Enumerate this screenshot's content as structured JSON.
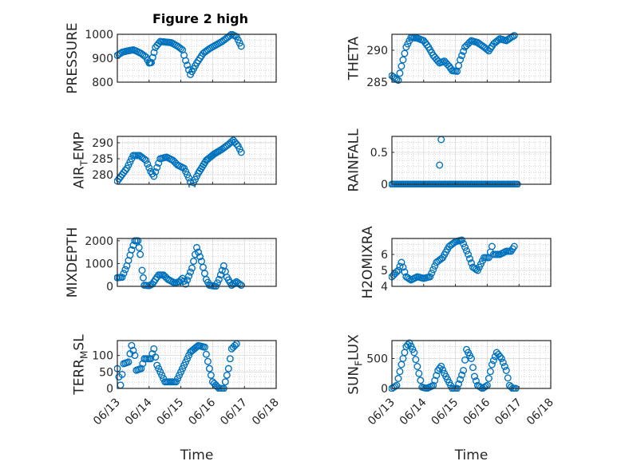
{
  "figure": {
    "title": "Figure 2 high"
  },
  "chart_data": [
    {
      "type": "scatter",
      "ylabel": "PRESSURE",
      "ylim": [
        800,
        1000
      ],
      "yticks": [
        {
          "v": 800,
          "label": "800"
        },
        {
          "v": 900,
          "label": "900"
        },
        {
          "v": 1000,
          "label": "1000"
        }
      ],
      "xlim": [
        0,
        5
      ],
      "xticks": [
        {
          "v": 0,
          "label": ""
        },
        {
          "v": 1,
          "label": ""
        },
        {
          "v": 2,
          "label": ""
        },
        {
          "v": 3,
          "label": ""
        },
        {
          "v": 4,
          "label": ""
        },
        {
          "v": 5,
          "label": ""
        }
      ],
      "grid": true,
      "curve": [
        [
          0,
          912
        ],
        [
          0.15,
          925
        ],
        [
          0.3,
          930
        ],
        [
          0.5,
          935
        ],
        [
          0.6,
          930
        ],
        [
          0.75,
          920
        ],
        [
          0.9,
          905
        ],
        [
          1.0,
          880
        ],
        [
          1.07,
          882
        ],
        [
          1.2,
          945
        ],
        [
          1.35,
          970
        ],
        [
          1.5,
          968
        ],
        [
          1.7,
          965
        ],
        [
          1.9,
          950
        ],
        [
          2.05,
          935
        ],
        [
          2.15,
          890
        ],
        [
          2.3,
          832
        ],
        [
          2.5,
          880
        ],
        [
          2.7,
          920
        ],
        [
          2.9,
          940
        ],
        [
          3.1,
          955
        ],
        [
          3.3,
          970
        ],
        [
          3.45,
          985
        ],
        [
          3.6,
          1000
        ],
        [
          3.75,
          990
        ],
        [
          3.9,
          950
        ]
      ]
    },
    {
      "type": "scatter",
      "ylabel": "THETA",
      "ylim": [
        285,
        292.5
      ],
      "yticks": [
        {
          "v": 285,
          "label": "285"
        },
        {
          "v": 290,
          "label": "290"
        }
      ],
      "xlim": [
        0,
        5
      ],
      "xticks": [
        {
          "v": 0,
          "label": ""
        },
        {
          "v": 1,
          "label": ""
        },
        {
          "v": 2,
          "label": ""
        },
        {
          "v": 3,
          "label": ""
        },
        {
          "v": 4,
          "label": ""
        },
        {
          "v": 5,
          "label": ""
        }
      ],
      "grid": true,
      "curve": [
        [
          0,
          286.0
        ],
        [
          0.1,
          285.6
        ],
        [
          0.2,
          285.3
        ],
        [
          0.3,
          287.5
        ],
        [
          0.45,
          290.5
        ],
        [
          0.6,
          292.0
        ],
        [
          0.8,
          291.9
        ],
        [
          1.0,
          291.5
        ],
        [
          1.15,
          290.5
        ],
        [
          1.3,
          289.2
        ],
        [
          1.5,
          288.0
        ],
        [
          1.65,
          288.3
        ],
        [
          1.8,
          287.5
        ],
        [
          1.9,
          286.8
        ],
        [
          2.05,
          286.7
        ],
        [
          2.15,
          288.5
        ],
        [
          2.3,
          290.5
        ],
        [
          2.5,
          291.5
        ],
        [
          2.7,
          291.2
        ],
        [
          2.9,
          290.5
        ],
        [
          3.05,
          289.9
        ],
        [
          3.2,
          291.0
        ],
        [
          3.4,
          291.8
        ],
        [
          3.6,
          291.5
        ],
        [
          3.75,
          292.0
        ],
        [
          3.85,
          292.3
        ]
      ]
    },
    {
      "type": "scatter",
      "ylabel": "AIR_TEMP",
      "ylabel_parts": {
        "main": "AIR",
        "sub": "T",
        "rest": "EMP"
      },
      "ylim": [
        277,
        292
      ],
      "yticks": [
        {
          "v": 280,
          "label": "280"
        },
        {
          "v": 285,
          "label": "285"
        },
        {
          "v": 290,
          "label": "290"
        }
      ],
      "xlim": [
        0,
        5
      ],
      "xticks": [
        {
          "v": 0,
          "label": ""
        },
        {
          "v": 1,
          "label": ""
        },
        {
          "v": 2,
          "label": ""
        },
        {
          "v": 3,
          "label": ""
        },
        {
          "v": 4,
          "label": ""
        },
        {
          "v": 5,
          "label": ""
        }
      ],
      "grid": true,
      "curve": [
        [
          0,
          278
        ],
        [
          0.15,
          280
        ],
        [
          0.3,
          282
        ],
        [
          0.5,
          286
        ],
        [
          0.7,
          286
        ],
        [
          0.9,
          284.5
        ],
        [
          1.05,
          281
        ],
        [
          1.15,
          279.5
        ],
        [
          1.35,
          285
        ],
        [
          1.55,
          285.5
        ],
        [
          1.75,
          284.5
        ],
        [
          1.9,
          283
        ],
        [
          2.1,
          282
        ],
        [
          2.25,
          279
        ],
        [
          2.35,
          276.5
        ],
        [
          2.55,
          280.5
        ],
        [
          2.8,
          284.5
        ],
        [
          3.05,
          286.5
        ],
        [
          3.3,
          288
        ],
        [
          3.5,
          289.5
        ],
        [
          3.65,
          290.8
        ],
        [
          3.8,
          289
        ],
        [
          3.9,
          287
        ]
      ]
    },
    {
      "type": "scatter",
      "ylabel": "RAINFALL",
      "ylim": [
        0,
        0.75
      ],
      "yticks": [
        {
          "v": 0,
          "label": "0"
        },
        {
          "v": 0.5,
          "label": "0.5"
        }
      ],
      "xlim": [
        0,
        5
      ],
      "xticks": [
        {
          "v": 0,
          "label": ""
        },
        {
          "v": 1,
          "label": ""
        },
        {
          "v": 2,
          "label": ""
        },
        {
          "v": 3,
          "label": ""
        },
        {
          "v": 4,
          "label": ""
        },
        {
          "v": 5,
          "label": ""
        }
      ],
      "grid": true,
      "curve": [
        [
          0,
          0
        ],
        [
          3.95,
          0
        ]
      ],
      "extra_points": [
        [
          1.5,
          0.3
        ],
        [
          1.55,
          0.7
        ]
      ]
    },
    {
      "type": "scatter",
      "ylabel": "MIXDEPTH",
      "ylim": [
        0,
        2100
      ],
      "yticks": [
        {
          "v": 0,
          "label": "0"
        },
        {
          "v": 1000,
          "label": "1000"
        },
        {
          "v": 2000,
          "label": "2000"
        }
      ],
      "xlim": [
        0,
        5
      ],
      "xticks": [
        {
          "v": 0,
          "label": ""
        },
        {
          "v": 1,
          "label": ""
        },
        {
          "v": 2,
          "label": ""
        },
        {
          "v": 3,
          "label": ""
        },
        {
          "v": 4,
          "label": ""
        },
        {
          "v": 5,
          "label": ""
        }
      ],
      "grid": true,
      "curve": [
        [
          0,
          380
        ],
        [
          0.15,
          400
        ],
        [
          0.3,
          900
        ],
        [
          0.45,
          1600
        ],
        [
          0.55,
          2000
        ],
        [
          0.65,
          2000
        ],
        [
          0.72,
          1400
        ],
        [
          0.78,
          700
        ],
        [
          0.85,
          50
        ],
        [
          1.0,
          30
        ],
        [
          1.1,
          100
        ],
        [
          1.3,
          500
        ],
        [
          1.45,
          500
        ],
        [
          1.6,
          300
        ],
        [
          1.8,
          150
        ],
        [
          1.95,
          200
        ],
        [
          2.05,
          350
        ],
        [
          2.15,
          100
        ],
        [
          2.35,
          800
        ],
        [
          2.5,
          1700
        ],
        [
          2.65,
          1100
        ],
        [
          2.8,
          300
        ],
        [
          2.9,
          50
        ],
        [
          3.1,
          0
        ],
        [
          3.2,
          300
        ],
        [
          3.35,
          900
        ],
        [
          3.45,
          400
        ],
        [
          3.6,
          50
        ],
        [
          3.75,
          200
        ],
        [
          3.85,
          100
        ],
        [
          3.9,
          50
        ]
      ]
    },
    {
      "type": "scatter",
      "ylabel": "H2OMIXRA",
      "ylim": [
        4,
        7
      ],
      "yticks": [
        {
          "v": 4,
          "label": "4"
        },
        {
          "v": 5,
          "label": "5"
        },
        {
          "v": 6,
          "label": "6"
        }
      ],
      "xlim": [
        0,
        5
      ],
      "xticks": [
        {
          "v": 0,
          "label": ""
        },
        {
          "v": 1,
          "label": ""
        },
        {
          "v": 2,
          "label": ""
        },
        {
          "v": 3,
          "label": ""
        },
        {
          "v": 4,
          "label": ""
        },
        {
          "v": 5,
          "label": ""
        }
      ],
      "grid": true,
      "curve": [
        [
          0,
          4.6
        ],
        [
          0.2,
          5.0
        ],
        [
          0.3,
          5.5
        ],
        [
          0.45,
          4.6
        ],
        [
          0.6,
          4.4
        ],
        [
          0.8,
          4.6
        ],
        [
          1.0,
          4.5
        ],
        [
          1.2,
          4.6
        ],
        [
          1.4,
          5.5
        ],
        [
          1.6,
          5.8
        ],
        [
          1.8,
          6.5
        ],
        [
          2.0,
          6.8
        ],
        [
          2.2,
          6.9
        ],
        [
          2.4,
          6.0
        ],
        [
          2.55,
          5.2
        ],
        [
          2.7,
          5.0
        ],
        [
          2.9,
          5.8
        ],
        [
          3.05,
          5.8
        ],
        [
          3.15,
          6.5
        ],
        [
          3.2,
          6.0
        ],
        [
          3.4,
          6.0
        ],
        [
          3.6,
          6.2
        ],
        [
          3.75,
          6.2
        ],
        [
          3.85,
          6.5
        ]
      ]
    },
    {
      "type": "scatter",
      "ylabel": "TERR_MSL",
      "ylabel_parts": {
        "main": "TERR",
        "sub": "M",
        "rest": "SL"
      },
      "ylim": [
        0,
        145
      ],
      "yticks": [
        {
          "v": 0,
          "label": "0"
        },
        {
          "v": 50,
          "label": "50"
        },
        {
          "v": 100,
          "label": "100"
        }
      ],
      "xlim": [
        0,
        5
      ],
      "xticks": [
        {
          "v": 0,
          "label": "06/13"
        },
        {
          "v": 1,
          "label": "06/14"
        },
        {
          "v": 2,
          "label": "06/15"
        },
        {
          "v": 3,
          "label": "06/16"
        },
        {
          "v": 4,
          "label": "06/17"
        },
        {
          "v": 5,
          "label": "06/18"
        }
      ],
      "xlabel": "Time",
      "grid": true,
      "curve": [
        [
          0,
          60
        ],
        [
          0.1,
          10
        ],
        [
          0.2,
          75
        ],
        [
          0.35,
          80
        ],
        [
          0.45,
          130
        ],
        [
          0.55,
          100
        ],
        [
          0.6,
          55
        ],
        [
          0.75,
          60
        ],
        [
          0.85,
          90
        ],
        [
          1.05,
          90
        ],
        [
          1.15,
          120
        ],
        [
          1.25,
          70
        ],
        [
          1.4,
          40
        ],
        [
          1.5,
          20
        ],
        [
          1.7,
          20
        ],
        [
          1.85,
          20
        ],
        [
          1.95,
          40
        ],
        [
          2.1,
          70
        ],
        [
          2.3,
          110
        ],
        [
          2.55,
          130
        ],
        [
          2.75,
          125
        ],
        [
          2.9,
          60
        ],
        [
          3.0,
          20
        ],
        [
          3.2,
          0
        ],
        [
          3.35,
          0
        ],
        [
          3.5,
          60
        ],
        [
          3.6,
          120
        ],
        [
          3.75,
          135
        ]
      ]
    },
    {
      "type": "scatter",
      "ylabel": "SUN_FLUX",
      "ylabel_parts": {
        "main": "SUN",
        "sub": "F",
        "rest": "LUX"
      },
      "ylim": [
        0,
        800
      ],
      "yticks": [
        {
          "v": 0,
          "label": "0"
        },
        {
          "v": 500,
          "label": "500"
        }
      ],
      "xlim": [
        0,
        5
      ],
      "xticks": [
        {
          "v": 0,
          "label": "06/13"
        },
        {
          "v": 1,
          "label": "06/14"
        },
        {
          "v": 2,
          "label": "06/15"
        },
        {
          "v": 3,
          "label": "06/16"
        },
        {
          "v": 4,
          "label": "06/17"
        },
        {
          "v": 5,
          "label": "06/18"
        }
      ],
      "xlabel": "Time",
      "grid": true,
      "curve": [
        [
          0,
          0
        ],
        [
          0.15,
          50
        ],
        [
          0.3,
          400
        ],
        [
          0.45,
          700
        ],
        [
          0.55,
          760
        ],
        [
          0.7,
          600
        ],
        [
          0.85,
          250
        ],
        [
          0.95,
          20
        ],
        [
          1.1,
          0
        ],
        [
          1.3,
          50
        ],
        [
          1.45,
          300
        ],
        [
          1.55,
          370
        ],
        [
          1.65,
          250
        ],
        [
          1.8,
          100
        ],
        [
          1.9,
          0
        ],
        [
          2.05,
          0
        ],
        [
          2.25,
          300
        ],
        [
          2.35,
          650
        ],
        [
          2.5,
          500
        ],
        [
          2.6,
          200
        ],
        [
          2.7,
          50
        ],
        [
          2.85,
          0
        ],
        [
          3.0,
          50
        ],
        [
          3.15,
          400
        ],
        [
          3.3,
          600
        ],
        [
          3.45,
          500
        ],
        [
          3.6,
          300
        ],
        [
          3.7,
          50
        ],
        [
          3.8,
          0
        ],
        [
          3.9,
          0
        ]
      ]
    }
  ]
}
